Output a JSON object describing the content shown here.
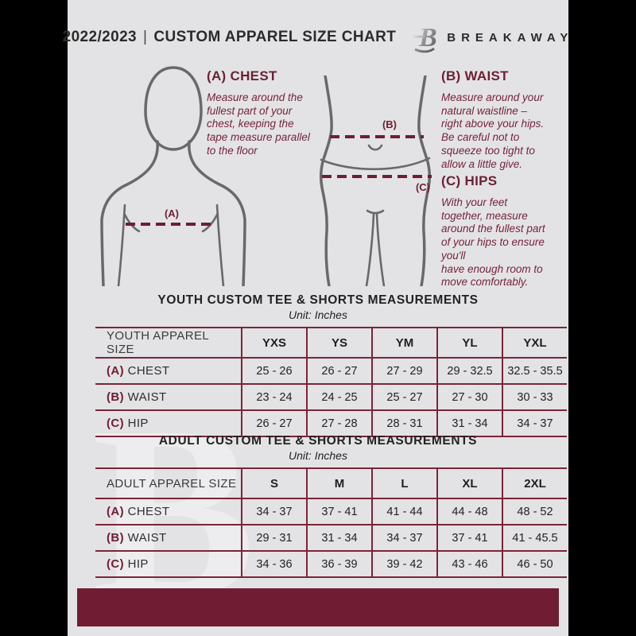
{
  "header": {
    "year": "2022/2023",
    "divider": "|",
    "title": "CUSTOM APPAREL SIZE CHART",
    "brand": "BREAKAWAY",
    "logo_letter": "B"
  },
  "instructions": {
    "chest": {
      "heading": "(A) CHEST",
      "body": "Measure around the\nfullest part of your\nchest, keeping the\ntape measure parallel\nto the floor"
    },
    "waist": {
      "heading": "(B) WAIST",
      "body": "Measure around your\nnatural waistline –\nright above your hips.\nBe careful not to\nsqueeze too tight to\nallow a little give."
    },
    "hips": {
      "heading": "(C) HIPS",
      "body": "With your feet\ntogether, measure\naround the fullest part\nof your hips to ensure\nyou'll\nhave enough room to\nmove comfortably."
    }
  },
  "diagram_labels": {
    "chest": "(A)",
    "waist": "(B)",
    "hips": "(C)"
  },
  "youth_table": {
    "title": "YOUTH CUSTOM TEE & SHORTS MEASUREMENTS",
    "unit": "Unit: Inches",
    "header": [
      "YOUTH APPAREL SIZE",
      "YXS",
      "YS",
      "YM",
      "YL",
      "YXL"
    ],
    "rows": [
      {
        "prefix": "(A)",
        "label": "CHEST",
        "values": [
          "25 - 26",
          "26 - 27",
          "27 - 29",
          "29 - 32.5",
          "32.5 - 35.5"
        ]
      },
      {
        "prefix": "(B)",
        "label": "WAIST",
        "values": [
          "23 - 24",
          "24 - 25",
          "25 - 27",
          "27 - 30",
          "30 - 33"
        ]
      },
      {
        "prefix": "(C)",
        "label": "HIP",
        "values": [
          "26 - 27",
          "27 - 28",
          "28 - 31",
          "31 - 34",
          "34 - 37"
        ]
      }
    ]
  },
  "adult_table": {
    "title": "ADULT CUSTOM TEE & SHORTS MEASUREMENTS",
    "unit": "Unit: Inches",
    "header": [
      "ADULT APPAREL SIZE",
      "S",
      "M",
      "L",
      "XL",
      "2XL"
    ],
    "rows": [
      {
        "prefix": "(A)",
        "label": "CHEST",
        "values": [
          "34 - 37",
          "37 - 41",
          "41 - 44",
          "44 - 48",
          "48 - 52"
        ]
      },
      {
        "prefix": "(B)",
        "label": "WAIST",
        "values": [
          "29 - 31",
          "31 - 34",
          "34 - 37",
          "37 - 41",
          "41 - 45.5"
        ]
      },
      {
        "prefix": "(C)",
        "label": "HIP",
        "values": [
          "34 - 36",
          "36 - 39",
          "39 - 42",
          "43 - 46",
          "46 - 50"
        ]
      }
    ]
  },
  "colors": {
    "maroon": "#701d33",
    "table_border": "#7d2438",
    "page_bg": "#e3e3e5",
    "figure_stroke": "#696969",
    "outer_bg": "#000000"
  }
}
